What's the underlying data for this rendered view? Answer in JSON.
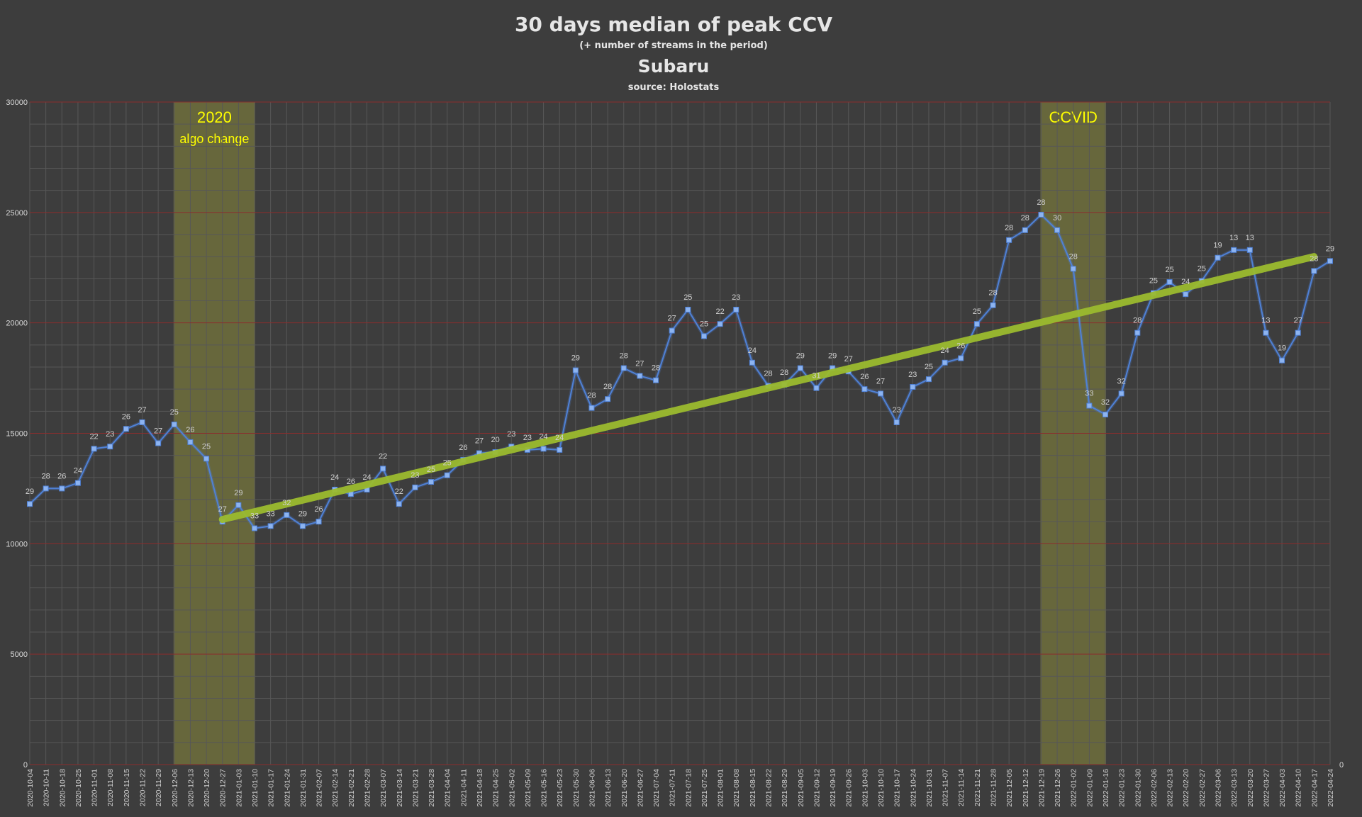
{
  "colors": {
    "background": "#3d3d3d",
    "series_line": "#4f81d6",
    "marker": "#8db4f0",
    "trendline": "#9bbb2e",
    "band_fill": "#8a8a3c",
    "band_text": "#ffff00",
    "grid_major": "#8b2d2d",
    "grid_minor": "#575757"
  },
  "chart_data": {
    "type": "line",
    "title": "30 days median of peak CCV",
    "subtitle": "(+ number of streams in the period)",
    "subject": "Subaru",
    "source": "source: Holostats",
    "ylim": [
      0,
      30000
    ],
    "yticks": [
      0,
      5000,
      10000,
      15000,
      20000,
      25000,
      30000
    ],
    "right_axis_label": "0",
    "grid": true,
    "categories": [
      "2020-10-04",
      "2020-10-11",
      "2020-10-18",
      "2020-10-25",
      "2020-11-01",
      "2020-11-08",
      "2020-11-15",
      "2020-11-22",
      "2020-11-29",
      "2020-12-06",
      "2020-12-13",
      "2020-12-20",
      "2020-12-27",
      "2021-01-03",
      "2021-01-10",
      "2021-01-17",
      "2021-01-24",
      "2021-01-31",
      "2021-02-07",
      "2021-02-14",
      "2021-02-21",
      "2021-02-28",
      "2021-03-07",
      "2021-03-14",
      "2021-03-21",
      "2021-03-28",
      "2021-04-04",
      "2021-04-11",
      "2021-04-18",
      "2021-04-25",
      "2021-05-02",
      "2021-05-09",
      "2021-05-16",
      "2021-05-23",
      "2021-05-30",
      "2021-06-06",
      "2021-06-13",
      "2021-06-20",
      "2021-06-27",
      "2021-07-04",
      "2021-07-11",
      "2021-07-18",
      "2021-07-25",
      "2021-08-01",
      "2021-08-08",
      "2021-08-15",
      "2021-08-22",
      "2021-08-29",
      "2021-09-05",
      "2021-09-12",
      "2021-09-19",
      "2021-09-26",
      "2021-10-03",
      "2021-10-10",
      "2021-10-17",
      "2021-10-24",
      "2021-10-31",
      "2021-11-07",
      "2021-11-14",
      "2021-11-21",
      "2021-11-28",
      "2021-12-05",
      "2021-12-12",
      "2021-12-19",
      "2021-12-26",
      "2022-01-02",
      "2022-01-09",
      "2022-01-16",
      "2022-01-23",
      "2022-01-30",
      "2022-02-06",
      "2022-02-13",
      "2022-02-20",
      "2022-02-27",
      "2022-03-06",
      "2022-03-13",
      "2022-03-20",
      "2022-03-27",
      "2022-04-03",
      "2022-04-10",
      "2022-04-17",
      "2022-04-24"
    ],
    "series": [
      {
        "values": [
          11800,
          12500,
          12500,
          12750,
          14300,
          14400,
          15200,
          15500,
          14550,
          15400,
          14600,
          13850,
          11000,
          11750,
          10700,
          10800,
          11300,
          10800,
          11000,
          12450,
          12250,
          12450,
          13400,
          11800,
          12550,
          12800,
          13100,
          13800,
          14100,
          14150,
          14400,
          14250,
          14300,
          14250,
          17850,
          16150,
          16550,
          17950,
          17600,
          17400,
          19650,
          20600,
          19400,
          19950,
          20600,
          18200,
          17150,
          17200,
          17950,
          17050,
          17950,
          17800,
          17000,
          16800,
          15500,
          17100,
          17450,
          18200,
          18400,
          19950,
          20800,
          23750,
          24200,
          24900,
          24200,
          22450,
          16250,
          15850,
          16800,
          19550,
          21350,
          21850,
          21300,
          21900,
          22950,
          23300,
          23300,
          19550,
          18300,
          19550,
          22350,
          22800
        ],
        "labels": [
          "29",
          "28",
          "26",
          "24",
          "22",
          "23",
          "26",
          "27",
          "27",
          "25",
          "26",
          "25",
          "27",
          "29",
          "33",
          "33",
          "32",
          "29",
          "26",
          "24",
          "26",
          "24",
          "22",
          "22",
          "23",
          "25",
          "25",
          "26",
          "27",
          "20",
          "23",
          "23",
          "24",
          "24",
          "29",
          "28",
          "28",
          "28",
          "27",
          "28",
          "27",
          "25",
          "25",
          "22",
          "23",
          "24",
          "28",
          "28",
          "29",
          "31",
          "29",
          "27",
          "26",
          "27",
          "23",
          "23",
          "25",
          "24",
          "26",
          "25",
          "28",
          "28",
          "28",
          "28",
          "30",
          "28",
          "33",
          "32",
          "32",
          "28",
          "25",
          "25",
          "24",
          "25",
          "19",
          "13",
          "13",
          "13",
          "19",
          "27",
          "28",
          "29"
        ]
      }
    ],
    "trendline": {
      "start_category": "2020-12-27",
      "end_category": "2022-04-17",
      "start_value": 11100,
      "end_value": 23000
    },
    "bands": [
      {
        "start_category": "2020-12-06",
        "end_category": "2021-01-10",
        "label": "2020",
        "sublabel": "algo change"
      },
      {
        "start_category": "2021-12-19",
        "end_category": "2022-01-16",
        "label": "CCVID",
        "sublabel": ""
      }
    ]
  }
}
